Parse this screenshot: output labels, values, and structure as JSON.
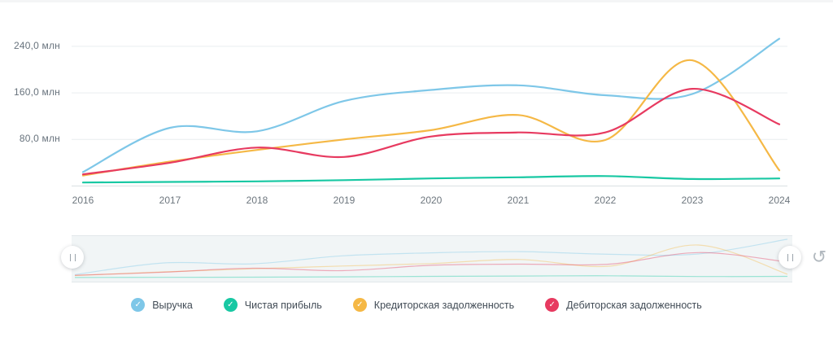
{
  "chart": {
    "y_axis": {
      "labels": [
        "240,0 млн",
        "160,0 млн",
        "80,0 млн"
      ],
      "values": [
        240,
        160,
        80
      ]
    },
    "x_axis": {
      "labels": [
        "2016",
        "2017",
        "2018",
        "2019",
        "2020",
        "2021",
        "2022",
        "2023",
        "2024"
      ]
    }
  },
  "chart_data": {
    "type": "line",
    "x": [
      2016,
      2017,
      2018,
      2019,
      2020,
      2021,
      2022,
      2023,
      2024
    ],
    "series": [
      {
        "name": "Выручка",
        "color": "#7EC7E8",
        "values": [
          24,
          100,
          94,
          146,
          165,
          173,
          156,
          158,
          253
        ]
      },
      {
        "name": "Чистая прибыль",
        "color": "#18C8A3",
        "values": [
          6,
          7,
          8,
          10,
          13,
          15,
          17,
          12,
          13
        ]
      },
      {
        "name": "Кредиторская задолженность",
        "color": "#F5B845",
        "values": [
          18,
          42,
          62,
          80,
          96,
          122,
          79,
          216,
          27
        ]
      },
      {
        "name": "Дебиторская задолженность",
        "color": "#E73A60",
        "values": [
          20,
          40,
          66,
          50,
          85,
          92,
          92,
          167,
          106
        ]
      }
    ],
    "unit": "млн",
    "ylim": [
      0,
      260
    ],
    "grid": true,
    "legend_position": "bottom",
    "navigator": true
  },
  "colors": {
    "grid_line": "#e9edef",
    "axis_line": "#d9e0e3",
    "nav_background": "#f1f5f6"
  },
  "navigator": {
    "reset_icon": "↺"
  }
}
